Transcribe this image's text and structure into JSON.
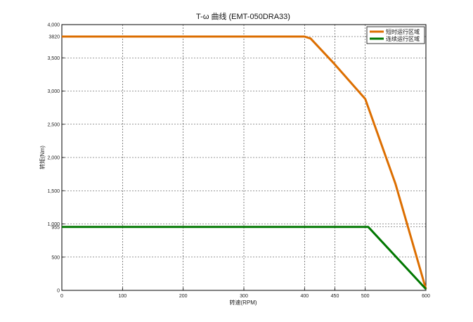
{
  "chart_data": {
    "type": "line",
    "title": "T-ω 曲线 (EMT-050DRA33)",
    "xlabel": "转速(RPM)",
    "ylabel": "转矩(Nm)",
    "xlim": [
      0,
      600
    ],
    "ylim": [
      0,
      4000
    ],
    "x_ticks": [
      0,
      100,
      200,
      300,
      400,
      450,
      500,
      600
    ],
    "y_ticks": [
      0,
      500,
      955,
      1000,
      1500,
      2000,
      2500,
      3000,
      3500,
      3820,
      4000
    ],
    "x_tick_labels": [
      "0",
      "100",
      "200",
      "300",
      "400",
      "450",
      "500",
      "600"
    ],
    "y_tick_labels": [
      "0",
      "500",
      "955",
      "1,000",
      "1,500",
      "2,000",
      "2,500",
      "3,000",
      "3,500",
      "3820",
      "4,000"
    ],
    "grid": true,
    "legend_position": "top-right",
    "series": [
      {
        "name": "短时运行区域",
        "color": "#dc6e00",
        "x": [
          0,
          400,
          410,
          450,
          500,
          550,
          600
        ],
        "y": [
          3820,
          3820,
          3790,
          3400,
          2880,
          1600,
          20
        ]
      },
      {
        "name": "连续运行区域",
        "color": "#007700",
        "x": [
          0,
          505,
          600
        ],
        "y": [
          955,
          955,
          20
        ]
      }
    ]
  }
}
